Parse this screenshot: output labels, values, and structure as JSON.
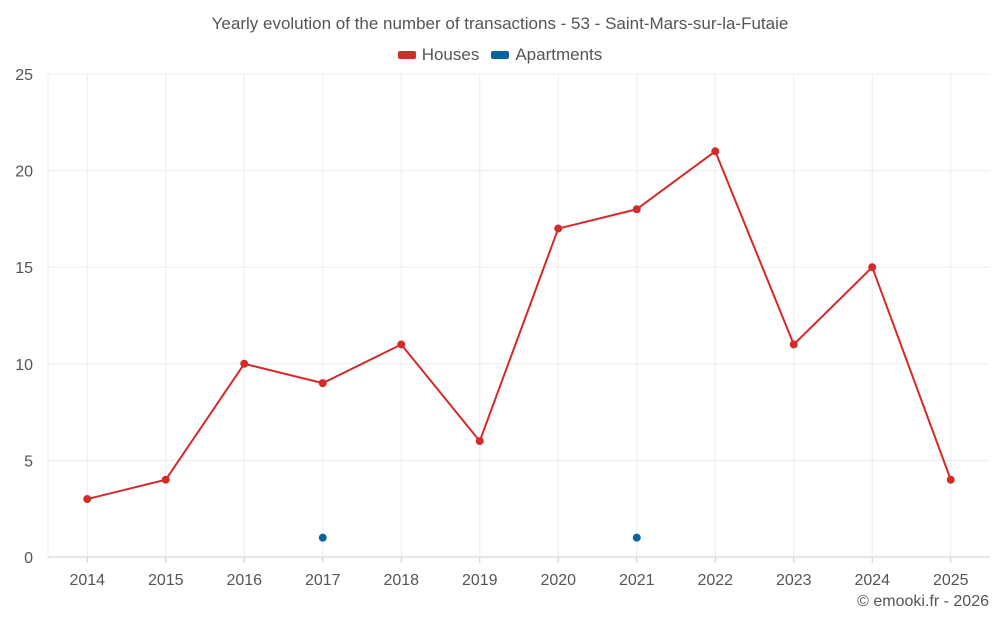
{
  "chart_data": {
    "type": "line",
    "title": "Yearly evolution of the number of transactions - 53 - Saint-Mars-sur-la-Futaie",
    "categories": [
      "2014",
      "2015",
      "2016",
      "2017",
      "2018",
      "2019",
      "2020",
      "2021",
      "2022",
      "2023",
      "2024",
      "2025"
    ],
    "series": [
      {
        "name": "Houses",
        "color": "#d32a2a",
        "values": [
          3,
          4,
          10,
          9,
          11,
          6,
          17,
          18,
          21,
          11,
          15,
          4
        ]
      },
      {
        "name": "Apartments",
        "color": "#0a64a0",
        "values": [
          null,
          null,
          null,
          1,
          null,
          null,
          null,
          1,
          null,
          null,
          null,
          null
        ]
      }
    ],
    "ylim": [
      0,
      25
    ],
    "yticks": [
      0,
      5,
      10,
      15,
      20,
      25
    ],
    "xlabel": "",
    "ylabel": "",
    "grid": true,
    "legend_position": "top-center"
  },
  "credit": "© emooki.fr - 2026"
}
